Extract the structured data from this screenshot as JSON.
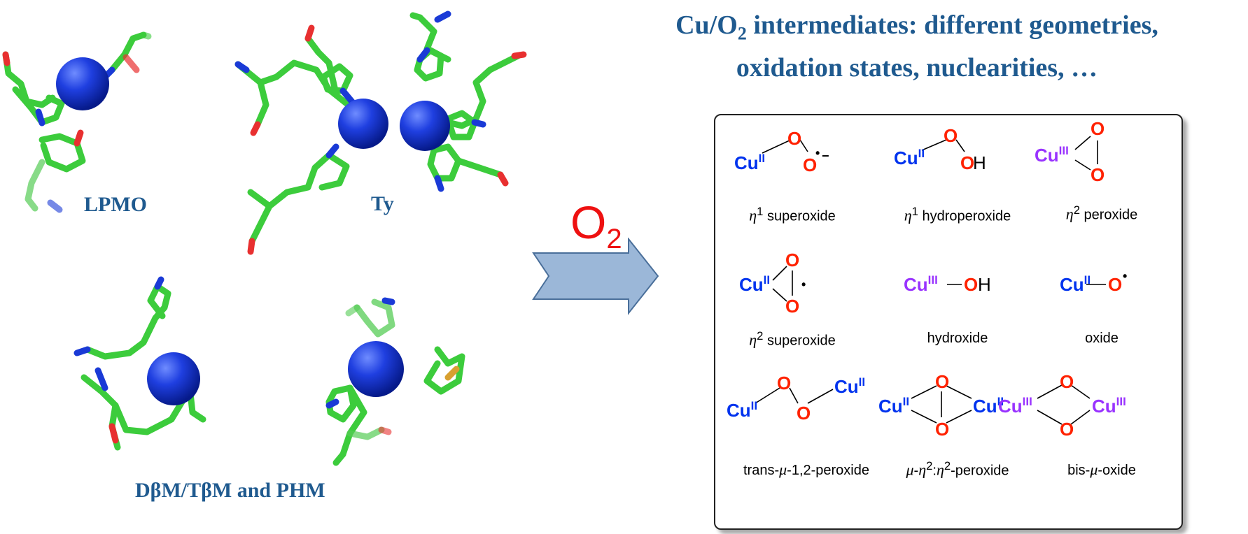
{
  "title": {
    "line1_a": "Cu/O",
    "line1_sub": "2",
    "line1_b": " intermediates: different geometries,",
    "line2": "oxidation states, nuclearities, …"
  },
  "enzymes": {
    "lpmo": "LPMO",
    "ty": "Ty",
    "dbm": "DβM/TβM and PHM"
  },
  "arrow": {
    "label_main": "O",
    "label_sub": "2"
  },
  "species": {
    "cu": "Cu",
    "o": "O",
    "h": "H",
    "ox2": "II",
    "ox3": "III",
    "radical": "•",
    "anion": "−"
  },
  "captions": {
    "c1": {
      "greek": "η",
      "sup": "1",
      "text": " superoxide"
    },
    "c2": {
      "greek": "η",
      "sup": "1",
      "text": " hydroperoxide"
    },
    "c3": {
      "greek": "η",
      "sup": "2",
      "text": " peroxide"
    },
    "c4": {
      "greek": "η",
      "sup": "2",
      "text": " superoxide"
    },
    "c5": {
      "text": "hydroxide"
    },
    "c6": {
      "text": "oxide"
    },
    "c7": {
      "pre": "trans-",
      "greek": "μ",
      "text": "-1,2-peroxide"
    },
    "c8": {
      "greek": "μ",
      "dash1": "-",
      "greek2": "η",
      "sup1": "2",
      "colon": ":",
      "greek3": "η",
      "sup2": "2",
      "text": "-peroxide"
    },
    "c9": {
      "pre": "bis-",
      "greek": "μ",
      "text": "-oxide"
    }
  },
  "colors": {
    "copper_sphere": "#1133cc",
    "carbon": "#3ccc3c",
    "nitrogen": "#1a3ad6",
    "oxygen_res": "#e83030",
    "cu2": "#0033ee",
    "cu3": "#9933ff",
    "oxygen": "#ff2200",
    "title": "#1f5a8f",
    "arrow_fill": "#9bb7d8",
    "arrow_stroke": "#4a6f9a"
  }
}
